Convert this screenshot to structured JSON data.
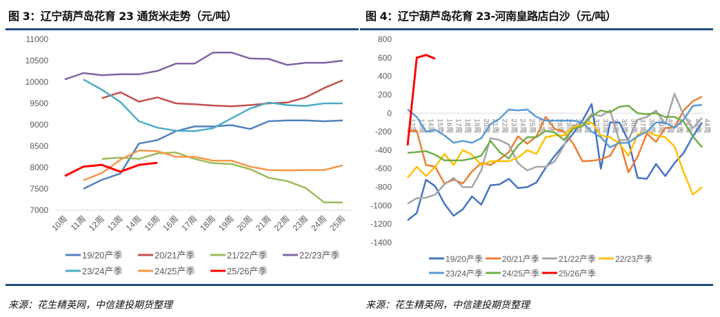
{
  "chart_data": [
    {
      "type": "line",
      "title": "图 3：辽宁葫芦岛花育 23 通货米走势（元/吨）",
      "source": "来源：花生精英网，中信建投期货整理",
      "categories": [
        "10周",
        "11周",
        "12周",
        "13周",
        "14周",
        "15周",
        "16周",
        "17周",
        "18周",
        "19周",
        "20周",
        "21周",
        "22周",
        "23周",
        "24周",
        "25周"
      ],
      "ylim": [
        7000,
        11000
      ],
      "yticks": [
        7000,
        7500,
        8000,
        8500,
        9000,
        9500,
        10000,
        10500,
        11000
      ],
      "grid": false,
      "legend_position": "bottom",
      "series": [
        {
          "name": "19/20产季",
          "color": "#4f81bd",
          "values": [
            null,
            7500,
            7710,
            7860,
            8560,
            8640,
            8850,
            8960,
            8960,
            8990,
            8900,
            9080,
            9100,
            9100,
            9080,
            9100
          ]
        },
        {
          "name": "20/21产季",
          "color": "#c0504d",
          "values": [
            null,
            null,
            9620,
            9760,
            9540,
            9640,
            9500,
            9480,
            9450,
            9430,
            9460,
            9500,
            9520,
            9640,
            9860,
            10040
          ]
        },
        {
          "name": "21/22产季",
          "color": "#9bbb59",
          "values": [
            null,
            null,
            8200,
            8230,
            8200,
            8330,
            8350,
            8200,
            8100,
            8080,
            7960,
            7760,
            7680,
            7520,
            7180,
            7180
          ]
        },
        {
          "name": "22/23产季",
          "color": "#8064a2",
          "values": [
            10060,
            10210,
            10160,
            10180,
            10180,
            10260,
            10430,
            10430,
            10690,
            10690,
            10550,
            10540,
            10400,
            10450,
            10450,
            10500
          ]
        },
        {
          "name": "23/24产季",
          "color": "#4bacc6",
          "values": [
            null,
            10060,
            9820,
            9530,
            9080,
            8930,
            8860,
            8850,
            8920,
            9150,
            9380,
            9520,
            9460,
            9440,
            9500,
            9500
          ]
        },
        {
          "name": "24/25产季",
          "color": "#f79646",
          "values": [
            null,
            7700,
            7870,
            8180,
            8400,
            8380,
            8250,
            8250,
            8160,
            8160,
            8020,
            7940,
            7930,
            7940,
            7940,
            8050
          ]
        },
        {
          "name": "25/26产季",
          "color": "#ff0000",
          "values": [
            7800,
            8020,
            8060,
            7900,
            8060,
            8110,
            null,
            null,
            null,
            null,
            null,
            null,
            null,
            null,
            null,
            null
          ]
        }
      ]
    },
    {
      "type": "line",
      "title": "图 4：辽宁葫芦岛花育 23-河南皇路店白沙（元/吨）",
      "source": "来源：花生精英网，中信建投期货整理",
      "categories": [
        "12周",
        "13周",
        "14周",
        "15周",
        "16周",
        "17周",
        "18周",
        "19周",
        "20周",
        "21周",
        "22周",
        "23周",
        "24周",
        "25周",
        "26周",
        "27周",
        "28周",
        "29周",
        "30周",
        "31周",
        "32周",
        "33周",
        "34周",
        "35周",
        "36周",
        "37周",
        "38周",
        "39周",
        "40周",
        "41周",
        "42周",
        "43周",
        "44周"
      ],
      "ylim": [
        -1400,
        800
      ],
      "yticks": [
        -1400,
        -1200,
        -1000,
        -800,
        -600,
        -400,
        -200,
        0,
        200,
        400,
        600,
        800
      ],
      "grid": false,
      "legend_position": "bottom",
      "series": [
        {
          "name": "19/20产季",
          "color": "#4472c4",
          "values": [
            -1160,
            -1080,
            -720,
            -790,
            -980,
            -1110,
            -1040,
            -900,
            -990,
            -780,
            -770,
            -710,
            -810,
            -800,
            -750,
            -590,
            -460,
            -340,
            -220,
            -80,
            100,
            -600,
            -100,
            -100,
            -300,
            -700,
            -710,
            -550,
            -680,
            -540,
            -430,
            -250,
            -100
          ]
        },
        {
          "name": "20/21产季",
          "color": "#ed7d31",
          "values": [
            -190,
            -190,
            -560,
            -580,
            -760,
            -720,
            -760,
            -630,
            -540,
            -560,
            -500,
            -420,
            -250,
            -330,
            -250,
            -40,
            -170,
            -200,
            -330,
            -520,
            -515,
            -500,
            -460,
            -290,
            -640,
            -470,
            -220,
            -310,
            -160,
            -150,
            30,
            130,
            180
          ]
        },
        {
          "name": "21/22产季",
          "color": "#a5a5a5",
          "values": [
            -980,
            -920,
            -915,
            -880,
            -770,
            -700,
            -800,
            -800,
            -620,
            -270,
            -290,
            -340,
            -540,
            -620,
            -580,
            -580,
            -520,
            -350,
            -130,
            -130,
            -10,
            -30,
            30,
            -290,
            -290,
            -70,
            -40,
            30,
            -120,
            210,
            -20,
            -160,
            -50
          ]
        },
        {
          "name": "22/23产季",
          "color": "#ffc000",
          "values": [
            -700,
            -580,
            -680,
            -580,
            -440,
            -560,
            -400,
            -450,
            -560,
            -520,
            -520,
            -520,
            -480,
            -400,
            -440,
            -260,
            -240,
            -240,
            -150,
            -130,
            -100,
            -240,
            -260,
            -330,
            -460,
            -230,
            -200,
            -240,
            -260,
            -360,
            -640,
            -880,
            -800
          ]
        },
        {
          "name": "23/24产季",
          "color": "#5b9bd5",
          "values": [
            40,
            -40,
            -200,
            -180,
            -240,
            -320,
            -300,
            -320,
            -270,
            -120,
            -60,
            40,
            30,
            40,
            -40,
            -80,
            -80,
            -80,
            -80,
            -100,
            -200,
            -260,
            -370,
            -320,
            -320,
            -250,
            -200,
            -100,
            -100,
            -160,
            -70,
            80,
            90
          ]
        },
        {
          "name": "24/25产季",
          "color": "#70ad47",
          "values": [
            -430,
            -420,
            -410,
            -450,
            -510,
            -510,
            -510,
            -490,
            -460,
            -300,
            -420,
            -490,
            -350,
            -260,
            -260,
            -190,
            -210,
            -290,
            -170,
            -140,
            -30,
            30,
            10,
            70,
            80,
            0,
            -10,
            0,
            -40,
            -40,
            -90,
            -250,
            -370
          ]
        },
        {
          "name": "25/26产季",
          "color": "#ff0000",
          "values": [
            -350,
            600,
            630,
            590,
            null,
            null,
            null,
            null,
            null,
            null,
            null,
            null,
            null,
            null,
            null,
            null,
            null,
            null,
            null,
            null,
            null,
            null,
            null,
            null,
            null,
            null,
            null,
            null,
            null,
            null,
            null,
            null,
            null
          ]
        }
      ]
    }
  ]
}
